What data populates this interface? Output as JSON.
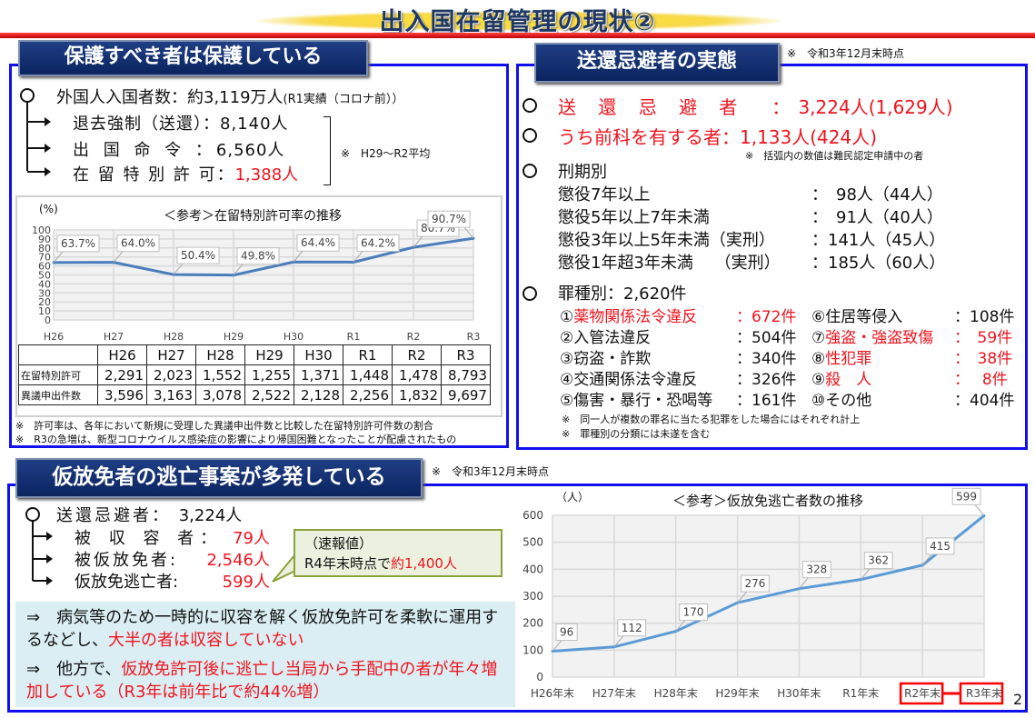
{
  "title": "出入国在留管理の現状②",
  "left": {
    "header": "保護すべき者は保護している",
    "entrants": {
      "label": "外国人入国者数：約3,119万人",
      "note": "(R1実績（コロナ前））"
    },
    "items": [
      {
        "label": "退去強制（送還）：",
        "value": "8,140人"
      },
      {
        "label": "出 国 命 令 ：",
        "value": "6,560人"
      },
      {
        "label": "在 留 特 別 許 可：",
        "value": "1,388人"
      }
    ],
    "bracket_note": "※　H29～R2平均",
    "footnotes": [
      "※　許可率は、各年において新規に受理した異議申出件数と比較した在留特別許可件数の割合",
      "※　R3の急増は、新型コロナウイルス感染症の影響により帰国困難となったことが配慮されたもの"
    ],
    "table": {
      "headers": [
        "",
        "H26",
        "H27",
        "H28",
        "H29",
        "H30",
        "R1",
        "R2",
        "R3"
      ],
      "rows": [
        [
          "在留特別許可",
          "2,291",
          "2,023",
          "1,552",
          "1,255",
          "1,371",
          "1,448",
          "1,478",
          "8,793"
        ],
        [
          "異議申出件数",
          "3,596",
          "3,163",
          "3,078",
          "2,522",
          "2,128",
          "2,256",
          "1,832",
          "9,697"
        ]
      ]
    }
  },
  "right": {
    "header": "送還忌避者の実態",
    "date_note": "※　令和3年12月末時点",
    "evaders": {
      "label": "送 還 忌 避 者　：",
      "value": "3,224人(1,629人)"
    },
    "priors": {
      "label": "うち前科を有する者：",
      "value": "1,133人(424人)"
    },
    "paren_note": "※　括弧内の数値は難民認定申請中の者",
    "sentence_heading": "刑期別",
    "sentences": [
      {
        "label": "懲役7年以上",
        "value": "：　98人（44人）"
      },
      {
        "label": "懲役5年以上7年未満",
        "value": "：　91人（40人）"
      },
      {
        "label": "懲役3年以上5年未満（実刑）",
        "value": "：141人（45人）"
      },
      {
        "label": "懲役1年超3年未満　 （実刑）",
        "value": "：185人（60人）"
      }
    ],
    "crime_heading": "罪種別：2,620件",
    "crimes_left": [
      {
        "num": "①",
        "label": "薬物関係法令違反",
        "value": "：672件",
        "red": true
      },
      {
        "num": "②",
        "label": "入管法違反",
        "value": "：504件",
        "red": false
      },
      {
        "num": "③",
        "label": "窃盗・詐欺",
        "value": "：340件",
        "red": false
      },
      {
        "num": "④",
        "label": "交通関係法令違反",
        "value": "：326件",
        "red": false
      },
      {
        "num": "⑤",
        "label": "傷害・暴行・恐喝等",
        "value": "：161件",
        "red": false
      }
    ],
    "crimes_right": [
      {
        "num": "⑥",
        "label": "住居等侵入",
        "value": "：108件",
        "red": false
      },
      {
        "num": "⑦",
        "label": "強盗・強盗致傷",
        "value": "：　59件",
        "red": true
      },
      {
        "num": "⑧",
        "label": "性犯罪",
        "value": "：　38件",
        "red": true
      },
      {
        "num": "⑨",
        "label": "殺　人",
        "value": "：　 8件",
        "red": true
      },
      {
        "num": "⑩",
        "label": "その他",
        "value": "：404件",
        "red": false
      }
    ],
    "footnotes": [
      "※　同一人が複数の罪名に当たる犯罪をした場合にはそれぞれ計上",
      "※　罪種別の分類には未遂を含む"
    ]
  },
  "bottom": {
    "header": "仮放免者の逃亡事案が多発している",
    "date_note": "※　令和3年12月末時点",
    "evaders": {
      "label": "送還忌避者：",
      "value": "3,224人"
    },
    "items": [
      {
        "label": "被 収 容 者：",
        "value": "79人"
      },
      {
        "label": "被仮放免者:",
        "value": "2,546人"
      },
      {
        "label": "仮放免逃亡者:",
        "value": "599人"
      }
    ],
    "callout": {
      "line1": "（速報値）",
      "line2_prefix": "R4年末時点で",
      "line2_value": "約1,400人"
    },
    "points": [
      {
        "prefix": "⇒　病気等のため一時的に収容を解く仮放免許可を柔軟に運用するなどし、",
        "red": "大半の者は収容していない",
        "suffix": ""
      },
      {
        "prefix": "⇒　他方で、",
        "red": "仮放免許可後に逃亡し当局から手配中の者が年々増加している（R3年は前年比で約44%増）",
        "suffix": ""
      }
    ],
    "page_number": "2"
  },
  "chart_data": [
    {
      "type": "line",
      "title": "＜参考＞在留特別許可率の推移",
      "ylabel": "(%)",
      "categories": [
        "H26",
        "H27",
        "H28",
        "H29",
        "H30",
        "R1",
        "R2",
        "R3"
      ],
      "values": [
        63.7,
        64.0,
        50.4,
        49.8,
        64.4,
        64.2,
        80.7,
        90.7
      ],
      "data_labels": [
        "63.7%",
        "64.0%",
        "50.4%",
        "49.8%",
        "64.4%",
        "64.2%",
        "80.7%",
        "90.7%"
      ],
      "ylim": [
        0,
        100
      ],
      "yticks": [
        0,
        10,
        20,
        30,
        40,
        50,
        60,
        70,
        80,
        90,
        100
      ],
      "grid": true,
      "color": "#4a7ebb"
    },
    {
      "type": "line",
      "title": "＜参考＞仮放免逃亡者数の推移",
      "ylabel": "（人）",
      "categories": [
        "H26年末",
        "H27年末",
        "H28年末",
        "H29年末",
        "H30年末",
        "R1年末",
        "R2年末",
        "R3年末"
      ],
      "values": [
        96,
        112,
        170,
        276,
        328,
        362,
        415,
        599
      ],
      "ylim": [
        0,
        600
      ],
      "yticks": [
        0,
        100,
        200,
        300,
        400,
        500,
        600
      ],
      "grid": true,
      "color": "#5b9bd5",
      "highlighted_categories": [
        "R2年末",
        "R3年末"
      ],
      "highlight_color": "#ff0000"
    }
  ]
}
